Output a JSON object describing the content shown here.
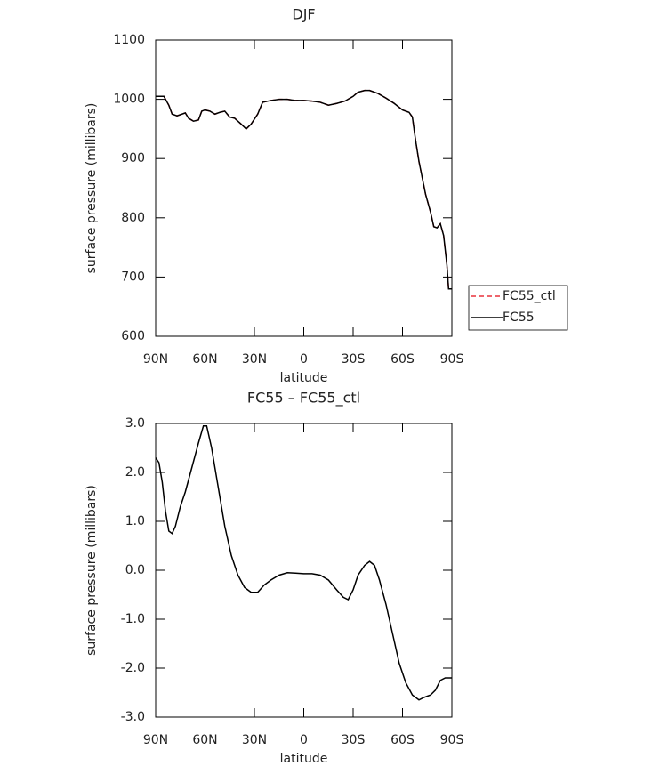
{
  "chart_data": [
    {
      "type": "line",
      "title": "DJF",
      "xlabel": "latitude",
      "ylabel": "surface pressure (millibars)",
      "x": [
        90,
        85,
        82,
        80,
        77,
        74,
        72,
        70,
        67,
        64,
        62,
        60,
        57,
        54,
        51,
        48,
        45,
        42,
        38,
        35,
        32,
        28,
        25,
        20,
        15,
        10,
        5,
        0,
        -5,
        -10,
        -15,
        -20,
        -25,
        -30,
        -33,
        -37,
        -40,
        -45,
        -50,
        -55,
        -60,
        -64,
        -66,
        -68,
        -70,
        -74,
        -77,
        -79,
        -81,
        -83,
        -85,
        -87,
        -88,
        -90
      ],
      "series": [
        {
          "name": "FC55_ctl",
          "color": "#e8323c",
          "linestyle": "dashed",
          "values": [
            1005,
            1005,
            990,
            975,
            972,
            975,
            977,
            968,
            963,
            965,
            980,
            982,
            980,
            975,
            978,
            980,
            970,
            968,
            958,
            950,
            958,
            975,
            995,
            998,
            1000,
            1000,
            998,
            998,
            997,
            995,
            990,
            993,
            997,
            1005,
            1012,
            1015,
            1015,
            1010,
            1002,
            993,
            982,
            978,
            970,
            930,
            895,
            840,
            810,
            785,
            783,
            790,
            770,
            720,
            680,
            680
          ]
        },
        {
          "name": "FC55",
          "color": "#000000",
          "linestyle": "solid",
          "values": [
            1005,
            1005,
            990,
            975,
            972,
            975,
            977,
            968,
            963,
            965,
            980,
            982,
            980,
            975,
            978,
            980,
            970,
            968,
            958,
            950,
            958,
            975,
            995,
            998,
            1000,
            1000,
            998,
            998,
            997,
            995,
            990,
            993,
            997,
            1005,
            1012,
            1015,
            1015,
            1010,
            1002,
            993,
            982,
            978,
            970,
            930,
            895,
            840,
            810,
            785,
            783,
            790,
            770,
            720,
            680,
            680
          ]
        }
      ],
      "xlim": [
        90,
        -90
      ],
      "xticks": [
        {
          "value": 90,
          "label": "90N"
        },
        {
          "value": 60,
          "label": "60N"
        },
        {
          "value": 30,
          "label": "30N"
        },
        0,
        {
          "value": -30,
          "label": "30S"
        },
        {
          "value": -60,
          "label": "60S"
        },
        {
          "value": -90,
          "label": "90S"
        }
      ],
      "ylim": [
        600,
        1100
      ],
      "yticks": [
        600,
        700,
        800,
        900,
        1000,
        1100
      ],
      "legend": "right"
    },
    {
      "type": "line",
      "title": "FC55 – FC55_ctl",
      "xlabel": "latitude",
      "ylabel": "surface pressure (millibars)",
      "x": [
        90,
        88,
        86,
        84,
        82,
        80,
        78,
        75,
        72,
        68,
        64,
        61,
        59,
        56,
        52,
        48,
        44,
        40,
        36,
        32,
        28,
        24,
        20,
        15,
        10,
        5,
        0,
        -5,
        -10,
        -15,
        -20,
        -24,
        -27,
        -30,
        -33,
        -37,
        -40,
        -43,
        -46,
        -50,
        -54,
        -58,
        -62,
        -66,
        -70,
        -73,
        -77,
        -80,
        -83,
        -86,
        -90
      ],
      "series": [
        {
          "color": "#000000",
          "linestyle": "solid",
          "values": [
            2.3,
            2.2,
            1.8,
            1.2,
            0.8,
            0.75,
            0.9,
            1.3,
            1.6,
            2.1,
            2.6,
            2.95,
            2.95,
            2.5,
            1.7,
            0.9,
            0.3,
            -0.1,
            -0.35,
            -0.45,
            -0.45,
            -0.3,
            -0.2,
            -0.1,
            -0.05,
            -0.06,
            -0.07,
            -0.07,
            -0.1,
            -0.2,
            -0.4,
            -0.55,
            -0.6,
            -0.4,
            -0.1,
            0.1,
            0.18,
            0.1,
            -0.2,
            -0.7,
            -1.3,
            -1.9,
            -2.3,
            -2.55,
            -2.65,
            -2.6,
            -2.55,
            -2.45,
            -2.25,
            -2.2,
            -2.2
          ]
        }
      ],
      "xlim": [
        90,
        -90
      ],
      "xticks": [
        {
          "value": 90,
          "label": "90N"
        },
        {
          "value": 60,
          "label": "60N"
        },
        {
          "value": 30,
          "label": "30N"
        },
        0,
        {
          "value": -30,
          "label": "30S"
        },
        {
          "value": -60,
          "label": "60S"
        },
        {
          "value": -90,
          "label": "90S"
        }
      ],
      "ylim": [
        -3.0,
        3.0
      ],
      "yticks": [
        {
          "value": -3.0,
          "label": "-3.0"
        },
        {
          "value": -2.0,
          "label": "-2.0"
        },
        {
          "value": -1.0,
          "label": "-1.0"
        },
        {
          "value": 0.0,
          "label": "0.0"
        },
        {
          "value": 1.0,
          "label": "1.0"
        },
        {
          "value": 2.0,
          "label": "2.0"
        },
        {
          "value": 3.0,
          "label": "3.0"
        }
      ]
    }
  ]
}
